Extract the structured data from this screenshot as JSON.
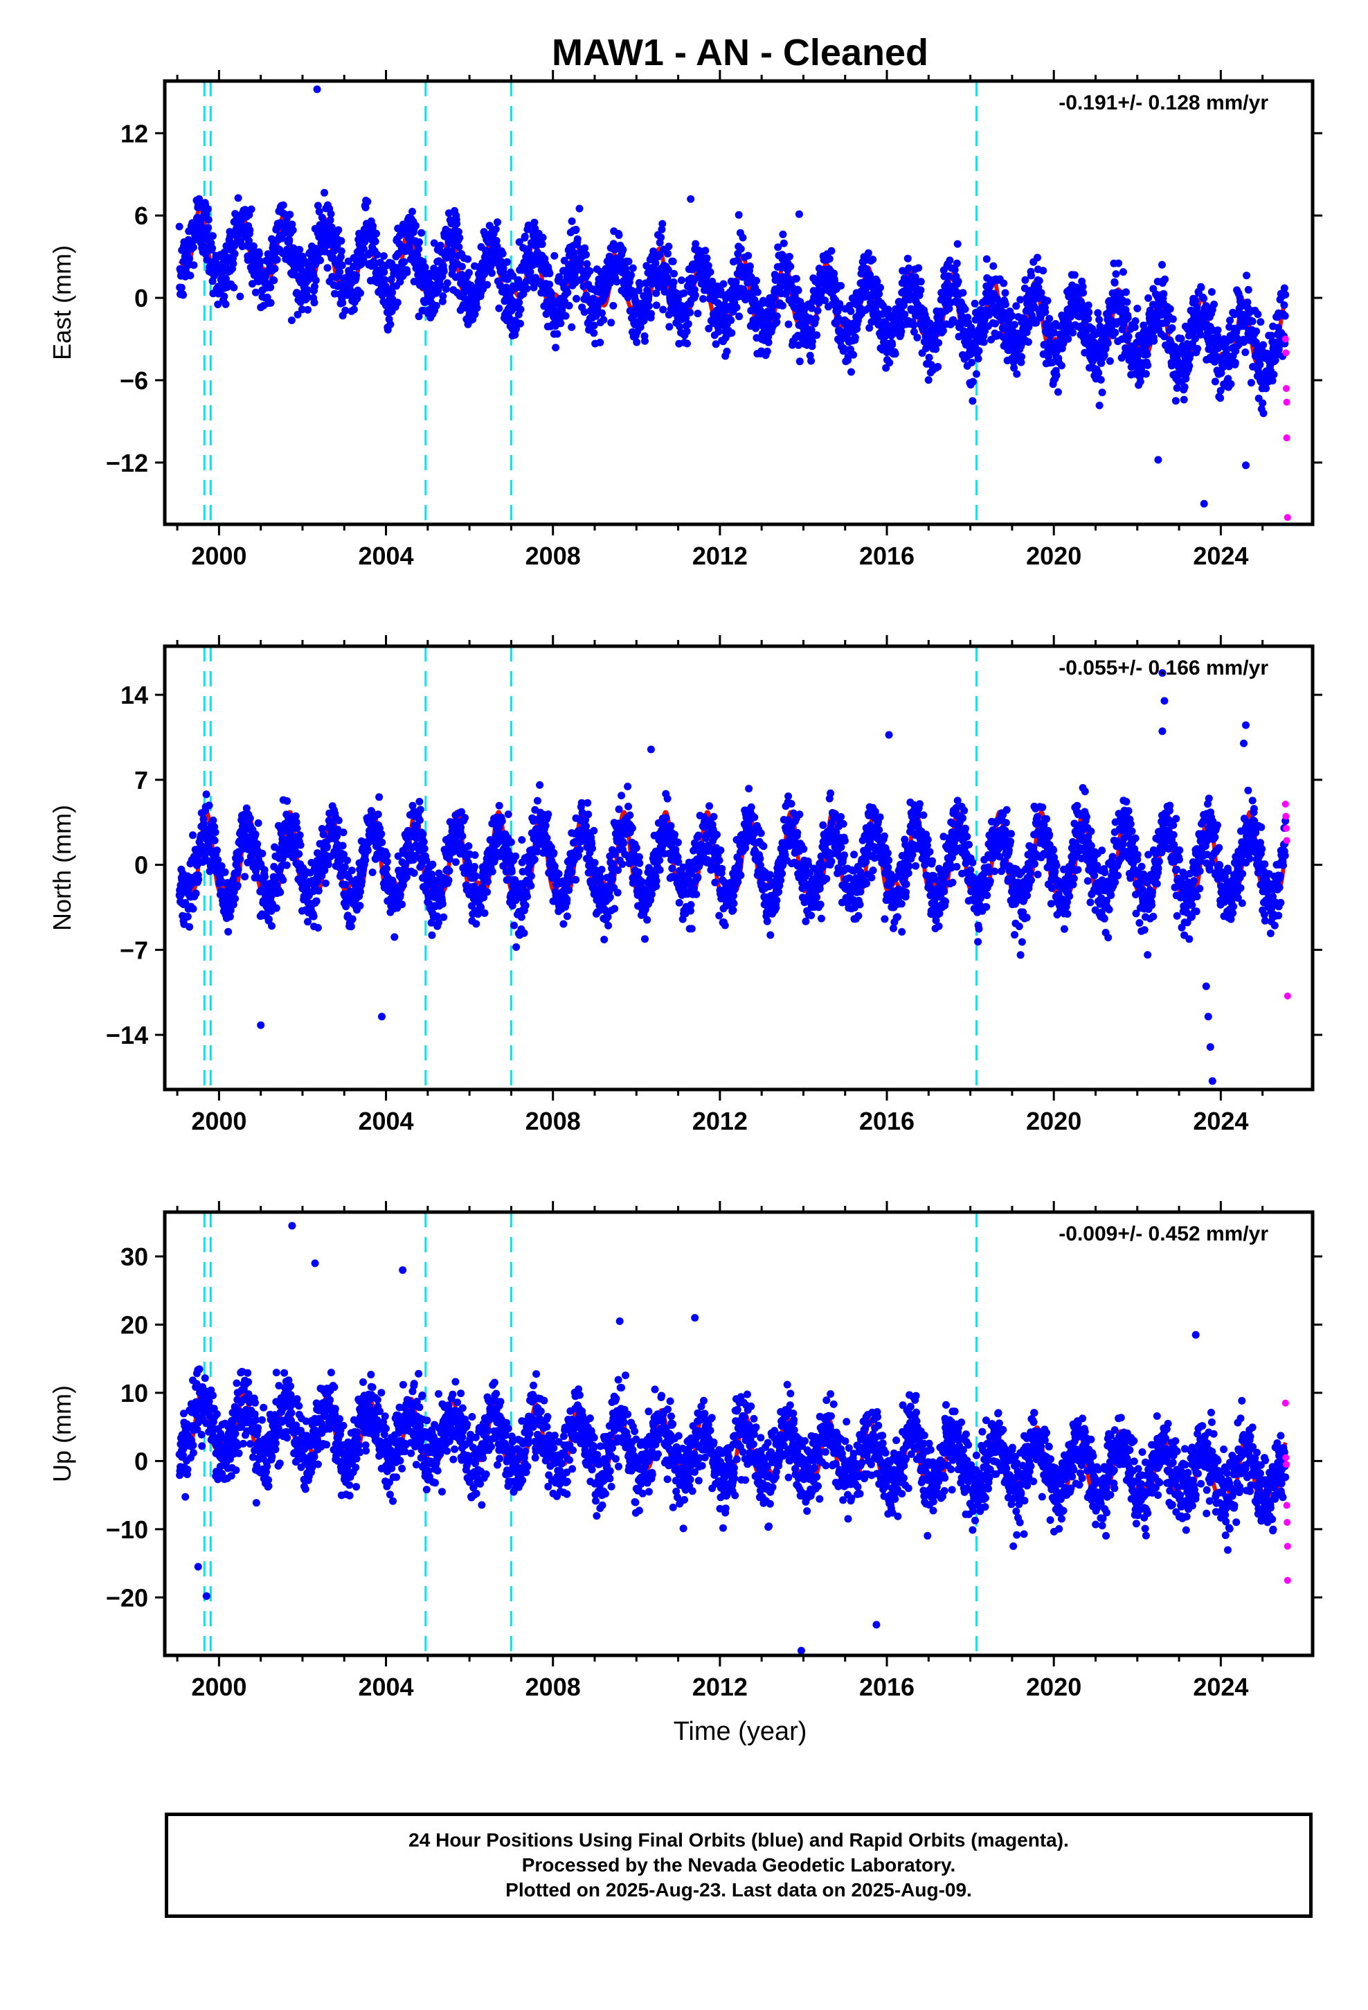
{
  "title": "MAW1  - AN - Cleaned",
  "xlabel": "Time (year)",
  "x_tick_labels": [
    "2000",
    "2004",
    "2008",
    "2012",
    "2016",
    "2020",
    "2024"
  ],
  "footer": {
    "line1": "24 Hour Positions Using Final Orbits (blue) and Rapid Orbits (magenta).",
    "line2": "Processed by the Nevada Geodetic Laboratory.",
    "line3": "Plotted on 2025-Aug-23. Last data on 2025-Aug-09."
  },
  "colors": {
    "final_orbits": "#0000ff",
    "rapid_orbits": "#ff00ff",
    "model_fit": "#e01010",
    "equipment_change_lines": "#00e5ee"
  },
  "chart_data": [
    {
      "type": "scatter",
      "name": "east",
      "ylabel": "East (mm)",
      "velocity_label": "-0.191+/- 0.128 mm/yr",
      "xlim": [
        1998.7,
        2026.2
      ],
      "ylim": [
        -16.5,
        15.8
      ],
      "yticks": [
        -12,
        -6,
        0,
        6,
        12
      ],
      "ytick_labels": [
        "−12",
        "−6",
        "0",
        "6",
        "12"
      ],
      "model": {
        "offset": 3.7,
        "trend": -0.27,
        "amplitude": 2.0,
        "phase_year": 0.55,
        "scatter": 2.3
      },
      "vertical_lines": [
        1999.65,
        1999.8,
        2004.95,
        2007.0,
        2018.15
      ],
      "outliers": [
        [
          2002.35,
          15.2
        ],
        [
          2023.6,
          -15.0
        ],
        [
          2024.6,
          -12.2
        ],
        [
          2022.5,
          -11.8
        ],
        [
          2013.9,
          6.1
        ],
        [
          2011.3,
          7.2
        ]
      ],
      "rapid_points": [
        [
          2025.55,
          -3.0
        ],
        [
          2025.56,
          -4.0
        ],
        [
          2025.57,
          -6.6
        ],
        [
          2025.58,
          -7.6
        ],
        [
          2025.58,
          -10.2
        ],
        [
          2025.6,
          -16.0
        ]
      ],
      "grid": false
    },
    {
      "type": "scatter",
      "name": "north",
      "ylabel": "North (mm)",
      "velocity_label": "-0.055+/- 0.166 mm/yr",
      "xlim": [
        1998.7,
        2026.2
      ],
      "ylim": [
        -18.5,
        18.0
      ],
      "yticks": [
        -14,
        -7,
        0,
        7,
        14
      ],
      "ytick_labels": [
        "−14",
        "−7",
        "0",
        "7",
        "14"
      ],
      "model": {
        "offset": 0.0,
        "trend": 0.0,
        "amplitude": 2.9,
        "phase_year": 0.7,
        "scatter": 2.4
      },
      "vertical_lines": [
        1999.65,
        1999.8,
        2004.95,
        2007.0,
        2018.15
      ],
      "outliers": [
        [
          2022.6,
          15.8
        ],
        [
          2022.65,
          13.5
        ],
        [
          2022.6,
          11.0
        ],
        [
          2023.65,
          -10.0
        ],
        [
          2023.7,
          -12.5
        ],
        [
          2023.75,
          -15.0
        ],
        [
          2023.8,
          -17.8
        ],
        [
          2024.6,
          11.5
        ],
        [
          2024.55,
          10.0
        ],
        [
          2003.9,
          -12.5
        ],
        [
          2001.0,
          -13.2
        ],
        [
          2010.35,
          9.5
        ],
        [
          2016.05,
          10.7
        ]
      ],
      "rapid_points": [
        [
          2025.55,
          5.0
        ],
        [
          2025.56,
          4.0
        ],
        [
          2025.57,
          3.0
        ],
        [
          2025.58,
          2.0
        ],
        [
          2025.6,
          -10.8
        ]
      ],
      "grid": false
    },
    {
      "type": "scatter",
      "name": "up",
      "ylabel": "Up (mm)",
      "velocity_label": "-0.009+/- 0.452 mm/yr",
      "xlim": [
        1998.7,
        2026.2
      ],
      "ylim": [
        -28.5,
        36.5
      ],
      "yticks": [
        -20,
        -10,
        0,
        10,
        20,
        30
      ],
      "ytick_labels": [
        "−20",
        "−10",
        "0",
        "10",
        "20",
        "30"
      ],
      "model": {
        "offset": 5.0,
        "trend": -0.28,
        "amplitude": 3.8,
        "phase_year": 0.6,
        "scatter": 4.8
      },
      "vertical_lines": [
        1999.65,
        1999.8,
        2004.95,
        2007.0,
        2018.15
      ],
      "outliers": [
        [
          2001.75,
          34.5
        ],
        [
          2002.3,
          29.0
        ],
        [
          2004.4,
          28.0
        ],
        [
          2013.95,
          -27.8
        ],
        [
          2015.75,
          -24.0
        ],
        [
          1999.7,
          -19.8
        ],
        [
          1999.5,
          -15.5
        ],
        [
          2009.6,
          20.5
        ],
        [
          2011.4,
          21.0
        ],
        [
          2023.4,
          18.5
        ]
      ],
      "rapid_points": [
        [
          2025.55,
          8.5
        ],
        [
          2025.56,
          0.5
        ],
        [
          2025.57,
          -0.5
        ],
        [
          2025.58,
          -6.5
        ],
        [
          2025.59,
          -9.0
        ],
        [
          2025.6,
          -12.5
        ],
        [
          2025.6,
          -17.5
        ]
      ],
      "grid": false
    }
  ]
}
